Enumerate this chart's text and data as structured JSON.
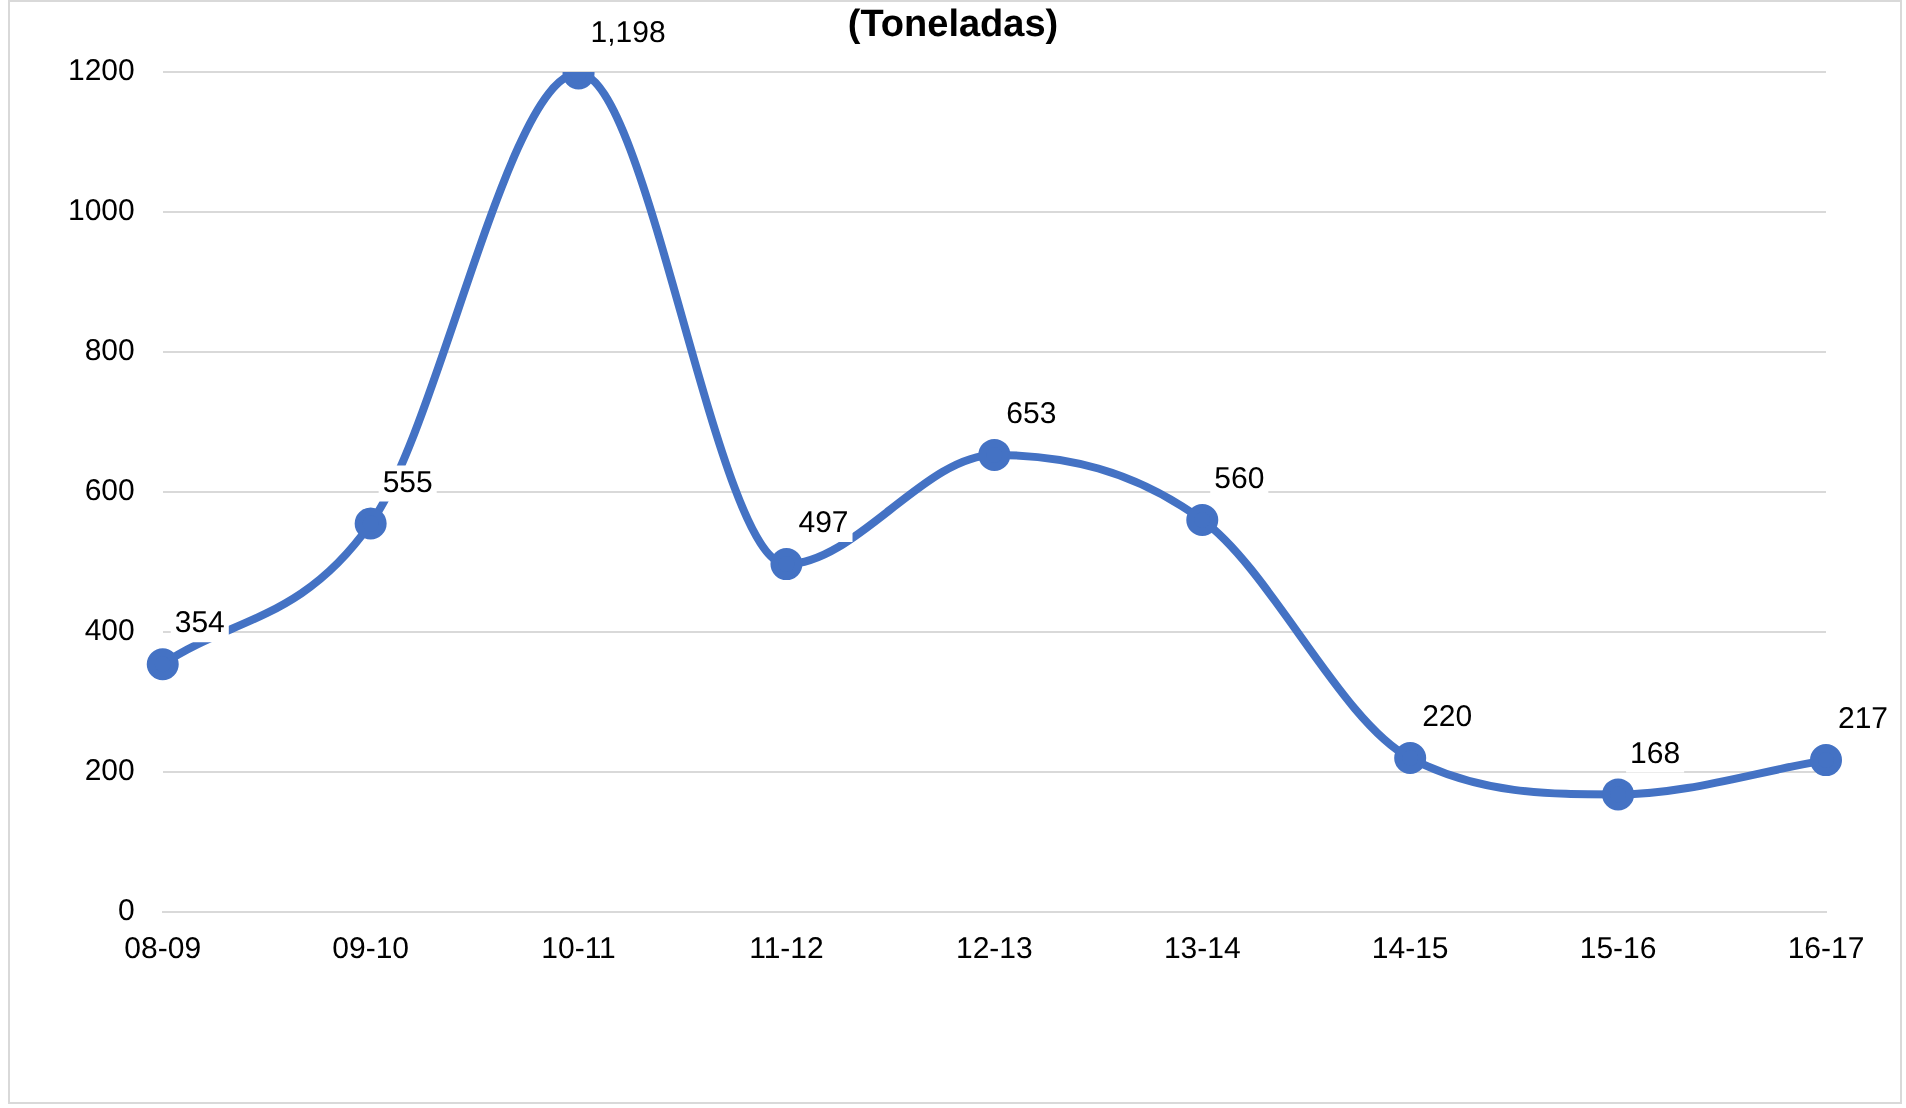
{
  "chart_data": {
    "type": "line",
    "title": "(Toneladas)",
    "categories": [
      "08-09",
      "09-10",
      "10-11",
      "11-12",
      "12-13",
      "13-14",
      "14-15",
      "15-16",
      "16-17"
    ],
    "series": [
      {
        "color": "#4472c4",
        "values": [
          354,
          555,
          1198,
          497,
          653,
          560,
          220,
          168,
          217
        ],
        "value_labels": [
          "354",
          "555",
          "1,198",
          "497",
          "653",
          "560",
          "220",
          "168",
          "217"
        ]
      }
    ],
    "ylim": [
      0,
      1200
    ],
    "yticks": [
      0,
      200,
      400,
      600,
      800,
      1000,
      1200
    ],
    "grid": "y",
    "legend": false,
    "marker": "circle",
    "line_style": "solid"
  }
}
